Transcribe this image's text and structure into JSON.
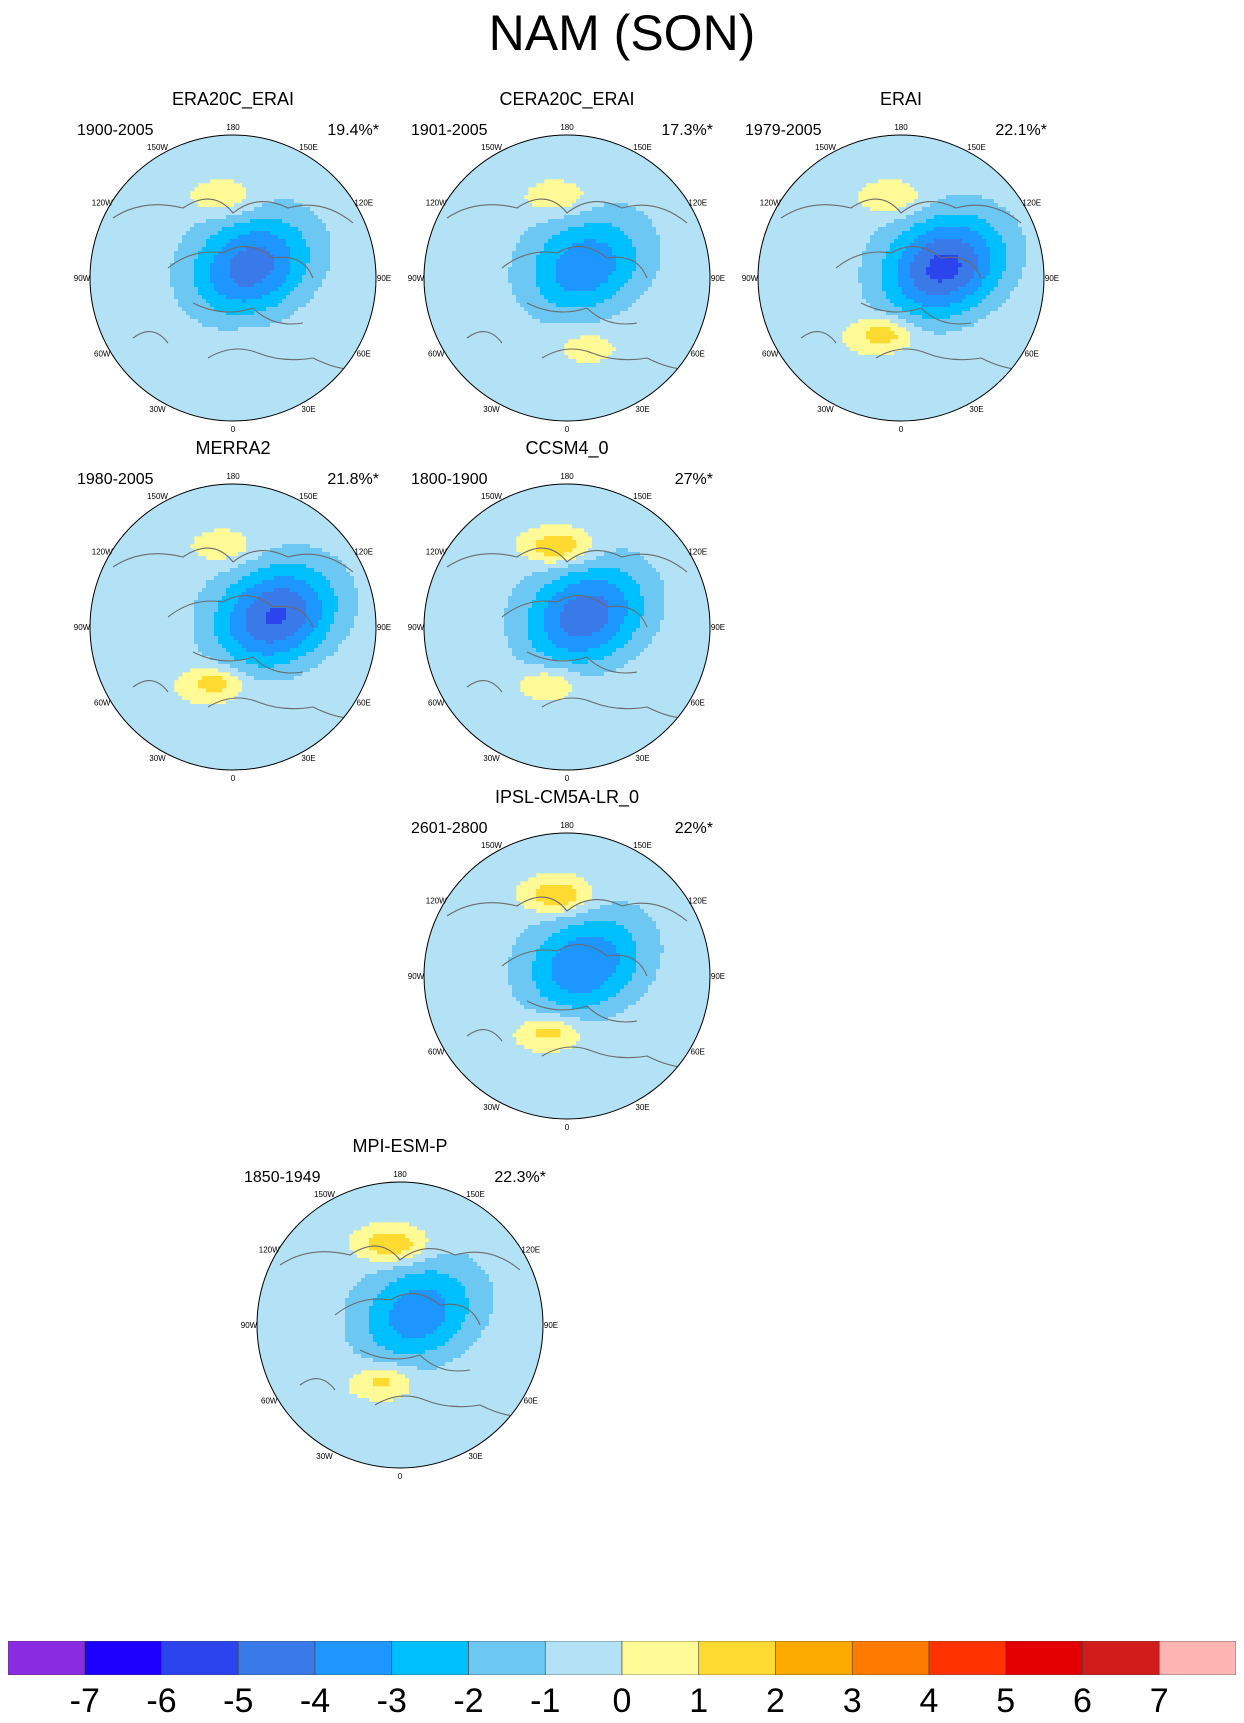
{
  "title": "NAM (SON)",
  "lon_labels": [
    "180",
    "150E",
    "120E",
    "90E",
    "60E",
    "30E",
    "0",
    "30W",
    "60W",
    "90W",
    "120W",
    "150W"
  ],
  "panels": [
    {
      "name": "ERA20C_ERAI",
      "years": "1900-2005",
      "percent": "19.4%*",
      "cells": {
        "nP": [
          -3.5,
          -0.5
        ],
        "ap": [
          0.42,
          1.5
        ],
        "ea": [
          0.62,
          0.4
        ],
        "pole": [
          0.05,
          -4.2
        ]
      }
    },
    {
      "name": "CERA20C_ERAI",
      "years": "1901-2005",
      "percent": "17.3%*",
      "cells": {
        "nP": [
          -3.5,
          -0.5
        ],
        "ap": [
          0.42,
          1.4
        ],
        "ea": [
          0.5,
          0.8
        ],
        "pole": [
          0.15,
          -3.4
        ]
      }
    },
    {
      "name": "ERAI",
      "years": "1979-2005",
      "percent": "22.1%*",
      "cells": {
        "nP": [
          -3.5,
          -0.5
        ],
        "ap": [
          0.4,
          1.4
        ],
        "ea": [
          0.35,
          2.2
        ],
        "pole": [
          0.4,
          -5.0
        ]
      }
    },
    {
      "name": "MERRA2",
      "years": "1980-2005",
      "percent": "21.8%*",
      "cells": {
        "nP": [
          -3.5,
          -0.5
        ],
        "ap": [
          0.42,
          1.3
        ],
        "ea": [
          0.42,
          2.1
        ],
        "pole": [
          0.35,
          -4.8
        ]
      }
    },
    {
      "name": "CCSM4_0",
      "years": "1800-1900",
      "percent": "27%*",
      "cells": {
        "nP": [
          -3.5,
          -0.5
        ],
        "ap": [
          0.48,
          2.6
        ],
        "ea": [
          0.58,
          1.6
        ],
        "pole": [
          0.05,
          -4.3
        ]
      }
    },
    {
      "name": "IPSL-CM5A-LR_0",
      "years": "2601-2800",
      "percent": "22%*",
      "cells": {
        "nP": [
          -3.5,
          -0.5
        ],
        "ap": [
          0.43,
          2.6
        ],
        "ea": [
          0.6,
          2.0
        ],
        "pole": [
          0.2,
          -3.6
        ]
      }
    },
    {
      "name": "MPI-ESM-P",
      "years": "1850-1949",
      "percent": "22.3%*",
      "cells": {
        "nP": [
          -3.5,
          -0.5
        ],
        "ap": [
          0.45,
          2.6
        ],
        "ea": [
          0.55,
          1.8
        ],
        "pole": [
          0.08,
          -3.3
        ]
      }
    }
  ],
  "colorbar": {
    "colors": [
      "#8a2be2",
      "#1e00ff",
      "#2c44ee",
      "#3a7ae8",
      "#1e96ff",
      "#00bfff",
      "#6cc8f2",
      "#b3e1f5",
      "#fffa96",
      "#ffdb32",
      "#ffaa00",
      "#ff7a00",
      "#ff3200",
      "#e50000",
      "#d21c1c",
      "#ffb4b4"
    ],
    "ticks": [
      "-7",
      "-6",
      "-5",
      "-4",
      "-3",
      "-2",
      "-1",
      "0",
      "1",
      "2",
      "3",
      "4",
      "5",
      "6",
      "7"
    ]
  }
}
